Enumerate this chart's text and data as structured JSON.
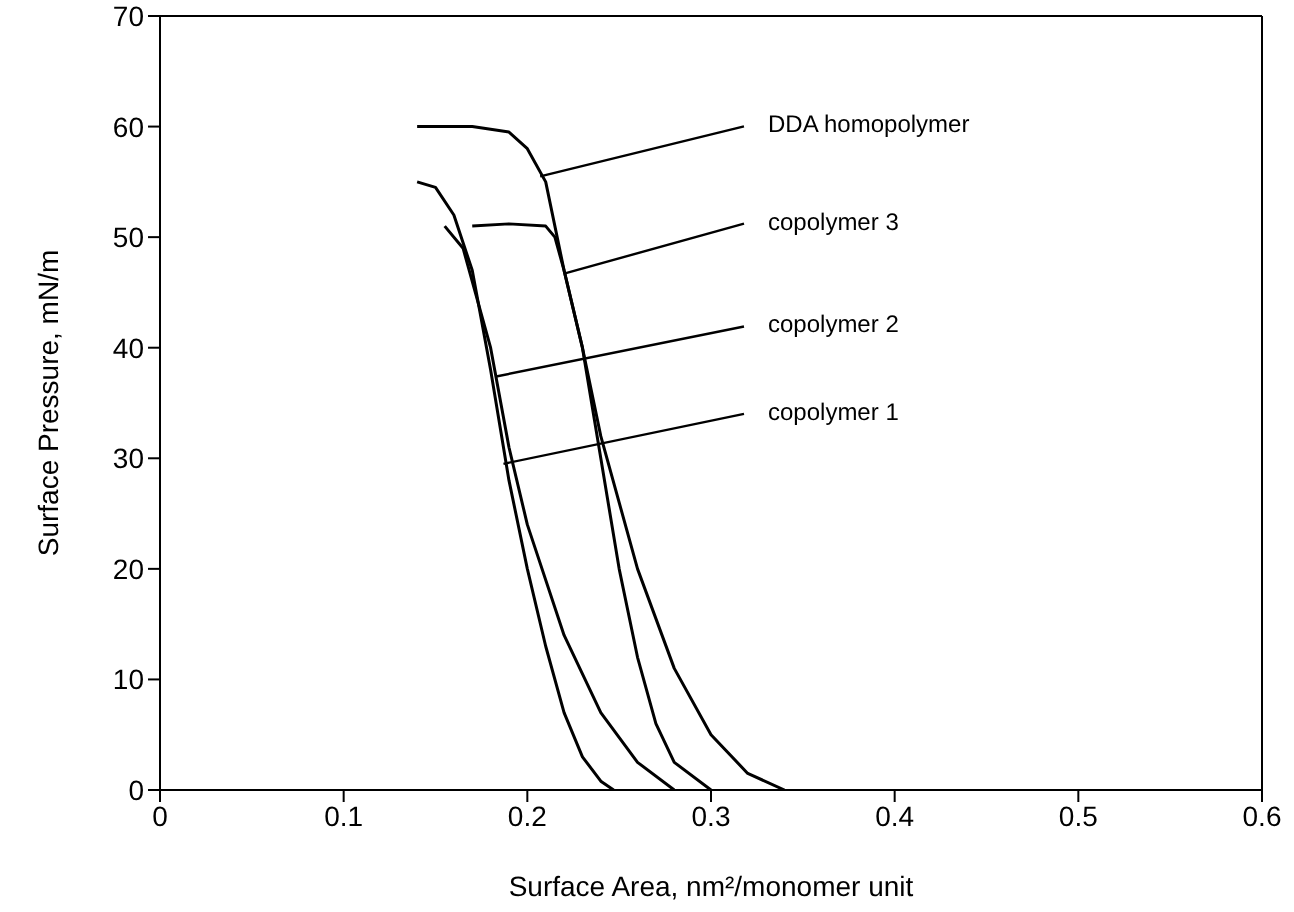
{
  "chart_data": {
    "type": "line",
    "xlabel": "Surface Area, nm²/monomer unit",
    "ylabel": "Surface Pressure, mN/m",
    "xlim": [
      0,
      0.6
    ],
    "ylim": [
      0,
      70
    ],
    "xticks": [
      0,
      0.1,
      0.2,
      0.3,
      0.4,
      0.5,
      0.6
    ],
    "yticks": [
      0,
      10,
      20,
      30,
      40,
      50,
      60,
      70
    ],
    "marker": "none",
    "line_style": "solid",
    "series": [
      {
        "color": "#000000",
        "x": [
          0.14,
          0.17,
          0.19,
          0.2,
          0.21,
          0.22,
          0.23,
          0.24,
          0.26,
          0.28,
          0.3,
          0.32,
          0.34
        ],
        "values": [
          60,
          60,
          59.5,
          58,
          55,
          47,
          40,
          32,
          20,
          11,
          5,
          1.5,
          0
        ]
      },
      {
        "color": "#000000",
        "x": [
          0.17,
          0.19,
          0.21,
          0.215,
          0.22,
          0.23,
          0.24,
          0.25,
          0.26,
          0.27,
          0.28,
          0.3
        ],
        "values": [
          51,
          51.2,
          51,
          50,
          47,
          40,
          30,
          20,
          12,
          6,
          2.5,
          0
        ]
      },
      {
        "color": "#000000",
        "x": [
          0.155,
          0.165,
          0.17,
          0.18,
          0.19,
          0.2,
          0.22,
          0.24,
          0.26,
          0.28
        ],
        "values": [
          51,
          49,
          46,
          40,
          31,
          24,
          14,
          7,
          2.5,
          0
        ]
      },
      {
        "color": "#000000",
        "x": [
          0.14,
          0.15,
          0.16,
          0.17,
          0.18,
          0.19,
          0.2,
          0.21,
          0.22,
          0.23,
          0.24,
          0.247
        ],
        "values": [
          55,
          54.5,
          52,
          47,
          38,
          28,
          20,
          13,
          7,
          3,
          0.8,
          0
        ]
      }
    ],
    "annotations": [
      {
        "text": "DDA homopolymer",
        "x": 0.207,
        "y": 55.5
      },
      {
        "text": "copolymer 3",
        "x": 0.22,
        "y": 46.7
      },
      {
        "text": "copolymer 2",
        "x": 0.183,
        "y": 37.4
      },
      {
        "text": "copolymer 1",
        "x": 0.187,
        "y": 29.5
      }
    ]
  }
}
